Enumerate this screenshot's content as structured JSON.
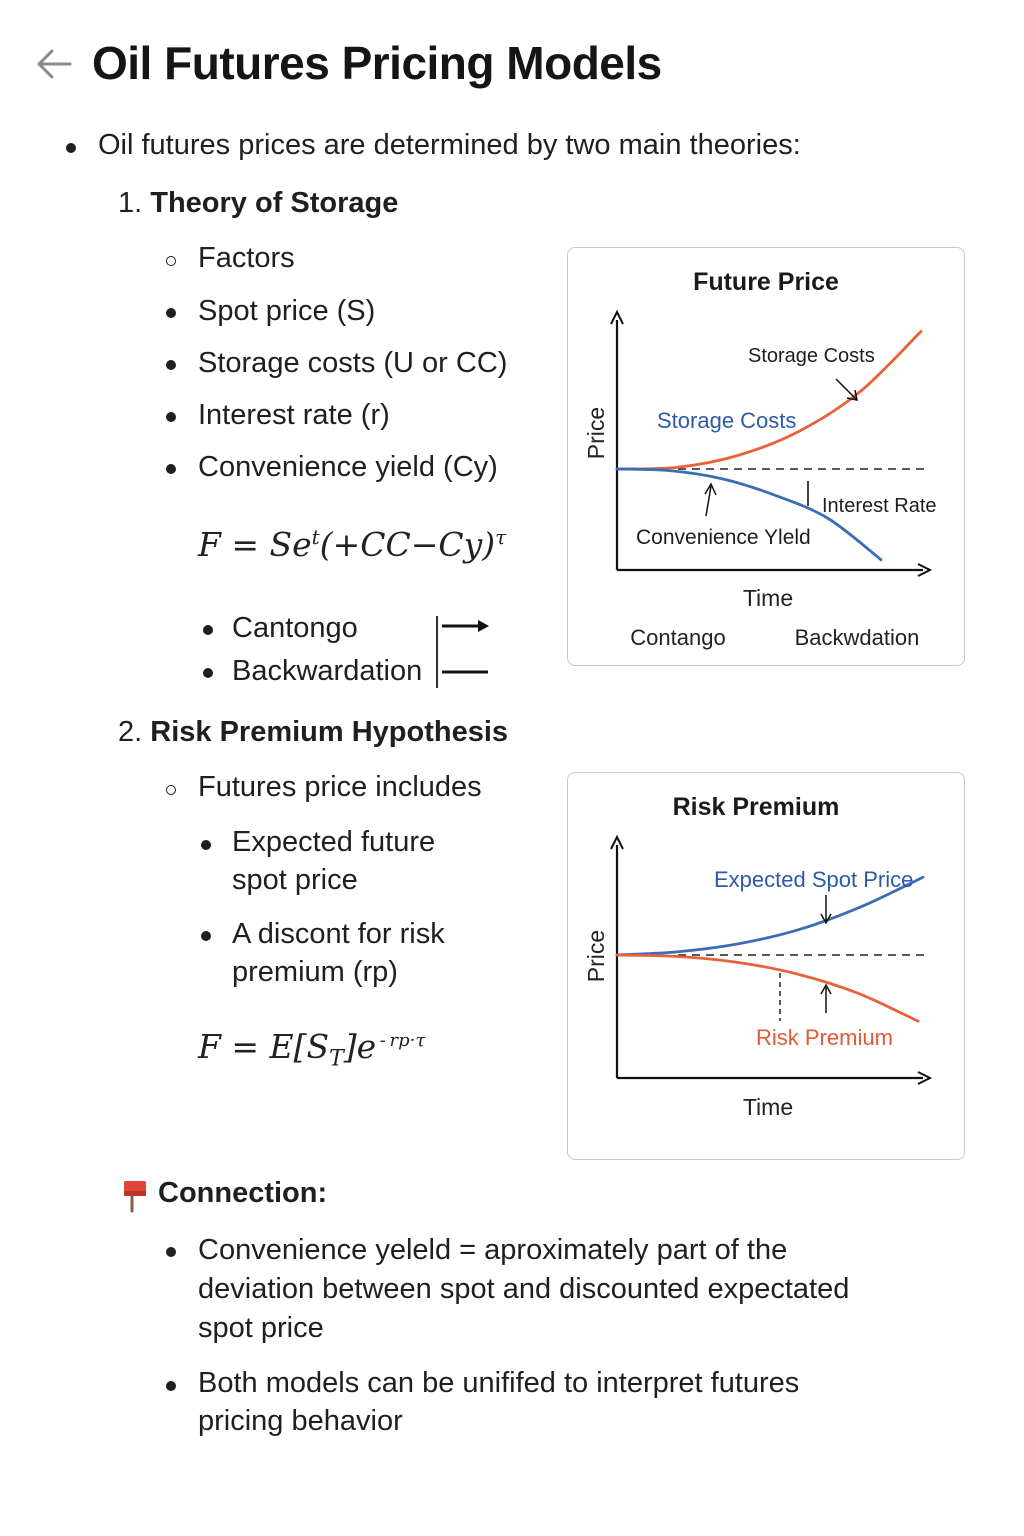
{
  "header": {
    "title": "Oil Futures Pricing Models"
  },
  "intro": "Oil futures prices are determined by two main theories:",
  "theory1": {
    "number": "1.",
    "title": "Theory of Storage",
    "factors_label": "Factors",
    "factors": [
      "Spot price (S)",
      "Storage costs (U or CC)",
      "Interest rate (r)",
      "Convenience yield (Cy)"
    ],
    "formula": {
      "lhs": "F = Se",
      "sup": "t",
      "mid": "(+CC−Cy)",
      "sup2": "τ"
    },
    "states": [
      "Cantongo",
      "Backwardation"
    ]
  },
  "theory2": {
    "number": "2.",
    "title": "Risk Premium Hypothesis",
    "includes_label": "Futures price includes",
    "items": [
      {
        "line1": "Expected future",
        "line2": "spot price"
      },
      {
        "line1": "A discont for risk",
        "line2": "premium (rp)"
      }
    ],
    "formula": {
      "lhs": "F = E[S",
      "sub": "T",
      "mid": "]e",
      "sup": " - rp·τ"
    }
  },
  "connection": {
    "title": "Connection:",
    "points": [
      {
        "lines": [
          "Convenience yeleld = aproximately part of the",
          "deviation between spot and discounted expectated",
          "spot price"
        ]
      },
      {
        "lines": [
          "Both models can be unififed to interpret futures",
          "pricing behavior"
        ]
      }
    ]
  },
  "chart_data": [
    {
      "type": "line",
      "title": "Future Price",
      "xlabel": "Time",
      "ylabel": "Price",
      "annotations": [
        "Storage Costs",
        "Storage Costs",
        "Interest Rate",
        "Convenience Yleld"
      ],
      "bottom_labels": [
        "Contango",
        "Backwdation"
      ],
      "series": [
        {
          "color": "#e8623a",
          "x": [
            0,
            0.2,
            0.4,
            0.6,
            0.8,
            1.0
          ],
          "values": [
            0,
            0.01,
            0.08,
            0.22,
            0.45,
            0.8
          ]
        },
        {
          "color": "#3a6db5",
          "x": [
            0,
            0.2,
            0.4,
            0.6,
            0.8,
            1.0
          ],
          "values": [
            0,
            -0.01,
            -0.06,
            -0.16,
            -0.3,
            -0.55
          ]
        }
      ],
      "baseline": 0,
      "grid": false
    },
    {
      "type": "line",
      "title": "Risk Premium",
      "xlabel": "Time",
      "ylabel": "Price",
      "annotations": [
        "Expected Spot Price",
        "Risk Premium"
      ],
      "series": [
        {
          "name": "Expected Spot Price",
          "color": "#3a6db5",
          "x": [
            0,
            0.2,
            0.4,
            0.6,
            0.8,
            1.0
          ],
          "values": [
            0,
            0.02,
            0.07,
            0.16,
            0.3,
            0.48
          ]
        },
        {
          "name": "Risk Premium",
          "color": "#e8623a",
          "x": [
            0,
            0.2,
            0.4,
            0.6,
            0.8,
            1.0
          ],
          "values": [
            0,
            -0.01,
            -0.05,
            -0.13,
            -0.26,
            -0.45
          ]
        }
      ],
      "baseline": 0,
      "grid": false
    }
  ],
  "colors": {
    "orange": "#e8623a",
    "blue": "#3a6db5",
    "text": "#1f1f1f"
  },
  "icons": {
    "back": "arrow-left-icon",
    "pin": "pushpin-icon"
  }
}
